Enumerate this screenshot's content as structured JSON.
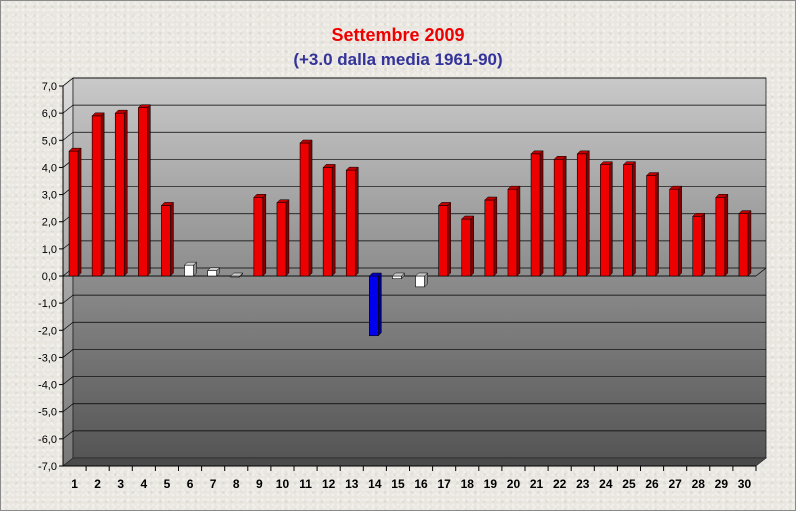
{
  "chart_data": {
    "type": "bar",
    "title": "Settembre 2009",
    "subtitle": "(+3.0 dalla media 1961-90)",
    "xlabel": "",
    "ylabel": "",
    "ylim": [
      -7,
      7
    ],
    "yticks": [
      "7,0",
      "6,0",
      "5,0",
      "4,0",
      "3,0",
      "2,0",
      "1,0",
      "0,0",
      "-1,0",
      "-2,0",
      "-3,0",
      "-4,0",
      "-5,0",
      "-6,0",
      "-7,0"
    ],
    "categories": [
      "1",
      "2",
      "3",
      "4",
      "5",
      "6",
      "7",
      "8",
      "9",
      "10",
      "11",
      "12",
      "13",
      "14",
      "15",
      "16",
      "17",
      "18",
      "19",
      "20",
      "21",
      "22",
      "23",
      "24",
      "25",
      "26",
      "27",
      "28",
      "29",
      "30"
    ],
    "values": [
      4.6,
      5.9,
      6.0,
      6.2,
      2.6,
      0.4,
      0.2,
      0.0,
      2.9,
      2.7,
      4.9,
      4.0,
      3.9,
      -2.2,
      -0.1,
      -0.4,
      2.6,
      2.1,
      2.8,
      3.2,
      4.5,
      4.3,
      4.5,
      4.1,
      4.1,
      3.7,
      3.2,
      2.2,
      2.9,
      2.3
    ],
    "grid": true,
    "legend": "none",
    "colors": {
      "positive": "#ee0000",
      "small": "#ffffff",
      "negative": "#0000ee",
      "title": "#ee0000",
      "subtitle": "#333399"
    }
  }
}
